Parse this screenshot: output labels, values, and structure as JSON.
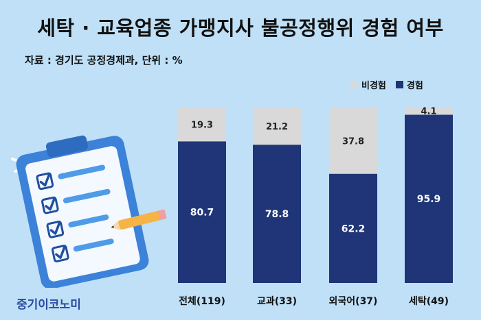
{
  "title": "세탁 · 교육업종 가맹지사 불공정행위 경험 여부",
  "source": "자료 : 경기도 공정경제과, 단위 : %",
  "brand": "중기이코노미",
  "colors": {
    "experienced": "#1f3577",
    "not_experienced": "#d9d9d9",
    "background": "#bfe0f7"
  },
  "chart_data": {
    "type": "bar",
    "stacked": true,
    "categories": [
      "전체(119)",
      "교과(33)",
      "외국어(37)",
      "세탁(49)"
    ],
    "series": [
      {
        "name": "경험",
        "values": [
          80.7,
          78.8,
          62.2,
          95.9
        ]
      },
      {
        "name": "비경험",
        "values": [
          19.3,
          21.2,
          37.8,
          4.1
        ]
      }
    ],
    "ylim": [
      0,
      100
    ],
    "legend": [
      {
        "label": "비경험",
        "color": "#d9d9d9"
      },
      {
        "label": "경험",
        "color": "#1f3577"
      }
    ],
    "legend_position": "top-right",
    "grid": false
  }
}
